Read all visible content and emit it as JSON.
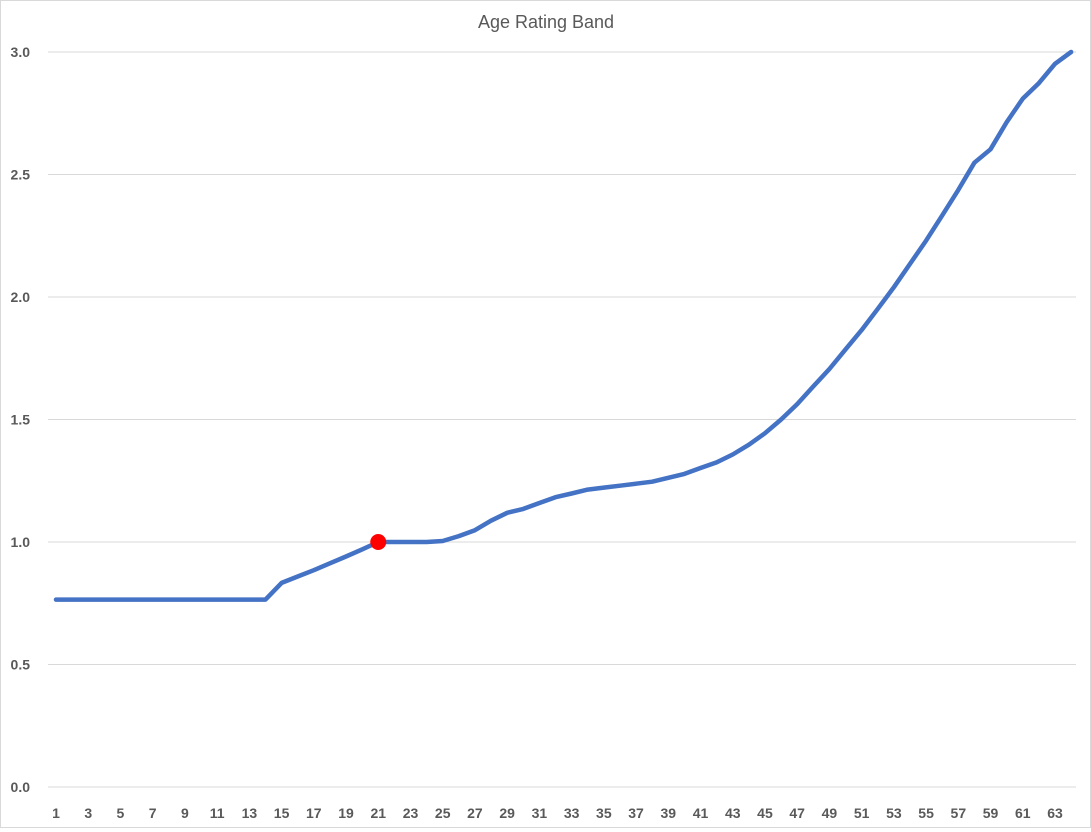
{
  "chart_data": {
    "type": "line",
    "title": "Age Rating Band",
    "xlabel": "",
    "ylabel": "",
    "categories": [
      1,
      2,
      3,
      4,
      5,
      6,
      7,
      8,
      9,
      10,
      11,
      12,
      13,
      14,
      15,
      16,
      17,
      18,
      19,
      20,
      21,
      22,
      23,
      24,
      25,
      26,
      27,
      28,
      29,
      30,
      31,
      32,
      33,
      34,
      35,
      36,
      37,
      38,
      39,
      40,
      41,
      42,
      43,
      44,
      45,
      46,
      47,
      48,
      49,
      50,
      51,
      52,
      53,
      54,
      55,
      56,
      57,
      58,
      59,
      60,
      61,
      62,
      63,
      64
    ],
    "x_tick_labels": [
      "1",
      "3",
      "5",
      "7",
      "9",
      "11",
      "13",
      "15",
      "17",
      "19",
      "21",
      "23",
      "25",
      "27",
      "29",
      "31",
      "33",
      "35",
      "37",
      "39",
      "41",
      "43",
      "45",
      "47",
      "49",
      "51",
      "53",
      "55",
      "57",
      "59",
      "61",
      "63"
    ],
    "series": [
      {
        "values": [
          0.765,
          0.765,
          0.765,
          0.765,
          0.765,
          0.765,
          0.765,
          0.765,
          0.765,
          0.765,
          0.765,
          0.765,
          0.765,
          0.765,
          0.833,
          0.859,
          0.885,
          0.913,
          0.941,
          0.97,
          1.0,
          1.0,
          1.0,
          1.0,
          1.004,
          1.024,
          1.048,
          1.087,
          1.119,
          1.135,
          1.159,
          1.183,
          1.198,
          1.214,
          1.222,
          1.23,
          1.238,
          1.246,
          1.262,
          1.278,
          1.302,
          1.325,
          1.357,
          1.397,
          1.444,
          1.5,
          1.563,
          1.635,
          1.706,
          1.786,
          1.865,
          1.952,
          2.04,
          2.135,
          2.23,
          2.333,
          2.437,
          2.548,
          2.603,
          2.714,
          2.81,
          2.873,
          2.952,
          3.0
        ],
        "color": "#4472c4"
      }
    ],
    "highlight_point": {
      "x": 21,
      "y": 1.0,
      "color": "#ff0000"
    },
    "ylim": [
      0,
      3.0
    ],
    "y_ticks": [
      "0.0",
      "0.5",
      "1.0",
      "1.5",
      "2.0",
      "2.5",
      "3.0"
    ],
    "grid": true,
    "legend": "none"
  }
}
